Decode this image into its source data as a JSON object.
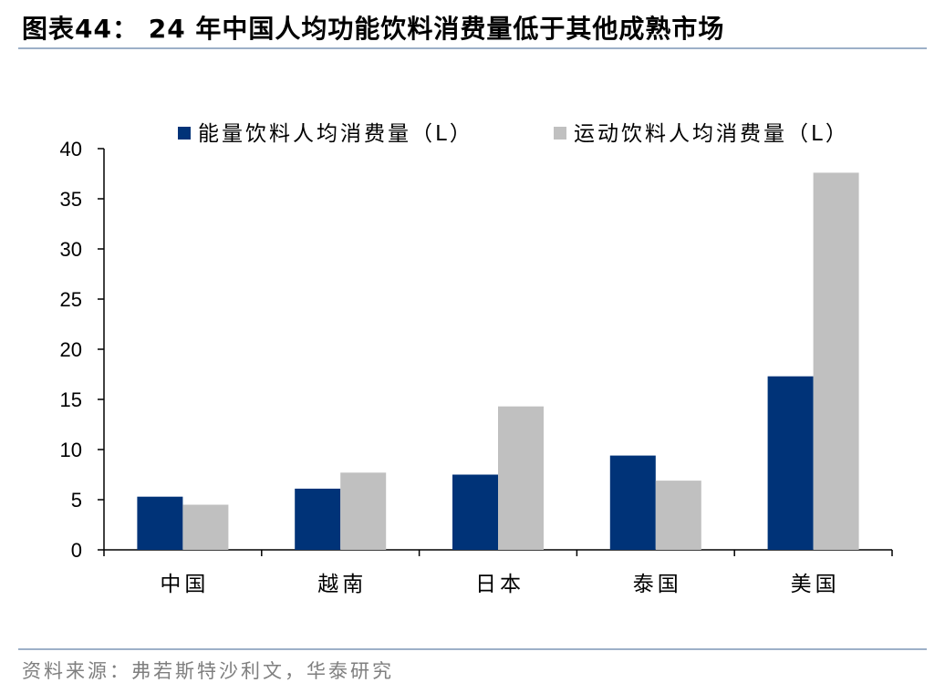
{
  "title": "图表44： 24 年中国人均功能饮料消费量低于其他成熟市场",
  "source": "资料来源：弗若斯特沙利文，华泰研究",
  "colors": {
    "series1": "#003378",
    "series2": "#c0c0c0",
    "rule": "#9db0c8",
    "source": "#7f7f7f"
  },
  "chart_data": {
    "type": "bar",
    "categories": [
      "中国",
      "越南",
      "日本",
      "泰国",
      "美国"
    ],
    "series": [
      {
        "name": "能量饮料人均消费量（L）",
        "values": [
          5.3,
          6.1,
          7.5,
          9.4,
          17.3
        ]
      },
      {
        "name": "运动饮料人均消费量（L）",
        "values": [
          4.5,
          7.7,
          14.3,
          6.9,
          37.6
        ]
      }
    ],
    "ylim": [
      0,
      40
    ],
    "yticks": [
      0,
      5,
      10,
      15,
      20,
      25,
      30,
      35,
      40
    ],
    "legend_position": "top",
    "grid": false
  }
}
